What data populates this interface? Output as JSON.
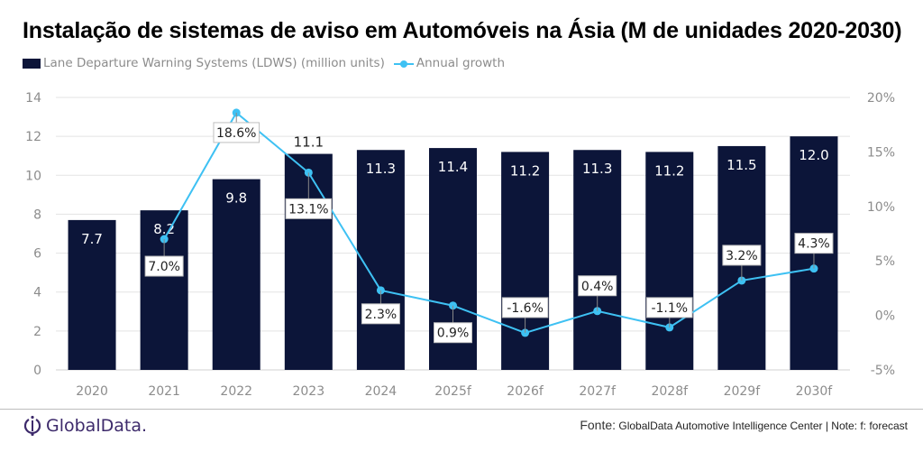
{
  "chart_data": {
    "type": "bar+line",
    "title": "Instalação de sistemas de aviso em Automóveis na Ásia (M de unidades 2020-2030)",
    "categories": [
      "2020",
      "2021",
      "2022",
      "2023",
      "2024",
      "2025f",
      "2026f",
      "2027f",
      "2028f",
      "2029f",
      "2030f"
    ],
    "series": [
      {
        "name": "Lane Departure Warning Systems (LDWS) (million units)",
        "type": "bar",
        "axis": "left",
        "color": "#0c1539",
        "values": [
          7.7,
          8.2,
          9.8,
          11.1,
          11.3,
          11.4,
          11.2,
          11.3,
          11.2,
          11.5,
          12.0
        ],
        "labels": [
          "7.7",
          "8.2",
          "9.8",
          "11.1",
          "11.3",
          "11.4",
          "11.2",
          "11.3",
          "11.2",
          "11.5",
          "12.0"
        ]
      },
      {
        "name": "Annual growth",
        "type": "line",
        "axis": "right",
        "color": "#3ec1f3",
        "values": [
          null,
          7.0,
          18.6,
          13.1,
          2.3,
          0.9,
          -1.6,
          0.4,
          -1.1,
          3.2,
          4.3
        ],
        "labels": [
          "",
          "7.0%",
          "18.6%",
          "13.1%",
          "2.3%",
          "0.9%",
          "-1.6%",
          "0.4%",
          "-1.1%",
          "3.2%",
          "4.3%"
        ]
      }
    ],
    "y_left": {
      "ylim": [
        0,
        14
      ],
      "ticks": [
        "0",
        "2",
        "4",
        "6",
        "8",
        "10",
        "12",
        "14"
      ]
    },
    "y_right": {
      "ylim": [
        -5,
        20
      ],
      "ticks": [
        "-5%",
        "0%",
        "5%",
        "10%",
        "15%",
        "20%"
      ]
    },
    "grid": true,
    "legend": "top-left"
  },
  "footer": {
    "logo_text": "GlobalData.",
    "source_lead": "Fonte:",
    "source_text": " GlobalData Automotive Intelligence Center | Note: f: forecast"
  }
}
